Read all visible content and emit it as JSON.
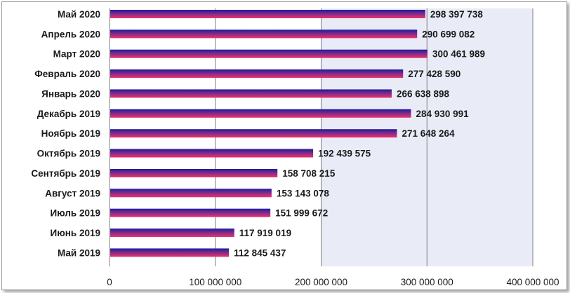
{
  "chart_data": {
    "type": "bar",
    "orientation": "horizontal",
    "categories": [
      "Май 2020",
      "Апрель 2020",
      "Март 2020",
      "Февраль 2020",
      "Январь 2020",
      "Декабрь 2019",
      "Ноябрь 2019",
      "Октябрь 2019",
      "Сентябрь 2019",
      "Август 2019",
      "Июль 2019",
      "Июнь 2019",
      "Май 2019"
    ],
    "values": [
      298397738,
      290699082,
      300461989,
      277428590,
      266638898,
      284930991,
      271648264,
      192439575,
      158708215,
      153143078,
      151999672,
      117919019,
      112845437
    ],
    "value_labels": [
      "298 397 738",
      "290 699 082",
      "300 461 989",
      "277 428 590",
      "266 638 898",
      "284 930 991",
      "271 648 264",
      "192 439 575",
      "158 708 215",
      "153 143 078",
      "151 999 672",
      "117 919 019",
      "112 845 437"
    ],
    "xlim": [
      0,
      400000000
    ],
    "x_ticks": [
      0,
      100000000,
      200000000,
      300000000,
      400000000
    ],
    "x_tick_labels": [
      "0",
      "100 000 000",
      "200 000 000",
      "300 000 000",
      "400 000 000"
    ],
    "title": "",
    "xlabel": "",
    "ylabel": "",
    "grid": "vertical",
    "legend": "none",
    "colors": {
      "bar_top": "#1c1c9c",
      "bar_bottom": "#f0306a",
      "plot_background_right": "#e9ecf7",
      "gridline": "#7f7f7f"
    }
  }
}
